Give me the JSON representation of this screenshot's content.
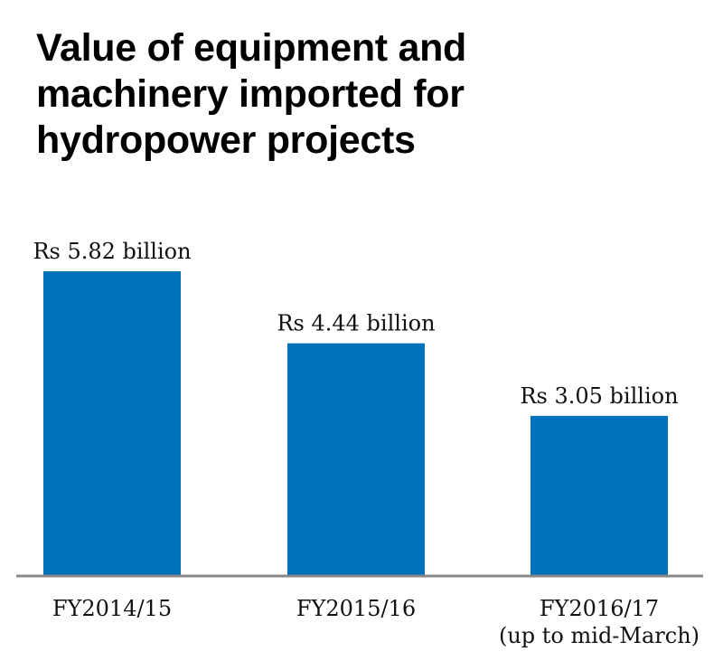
{
  "chart_data": {
    "type": "bar",
    "title": "Value of equipment and machinery imported for hydropower projects",
    "title_lines": [
      "Value of equipment and",
      "machinery imported for",
      "hydropower projects"
    ],
    "categories": [
      [
        "FY2014/15"
      ],
      [
        "FY2015/16"
      ],
      [
        "FY2016/17",
        "(up to mid-March)"
      ]
    ],
    "values": [
      5.82,
      4.44,
      3.05
    ],
    "data_labels": [
      "Rs 5.82 billion",
      "Rs 4.44 billion",
      "Rs 3.05 billion"
    ],
    "unit": "Rs billion",
    "ylim": [
      0,
      5.82
    ],
    "grid": false,
    "bar_color": "#0072bc",
    "axis_color": "#888888"
  }
}
